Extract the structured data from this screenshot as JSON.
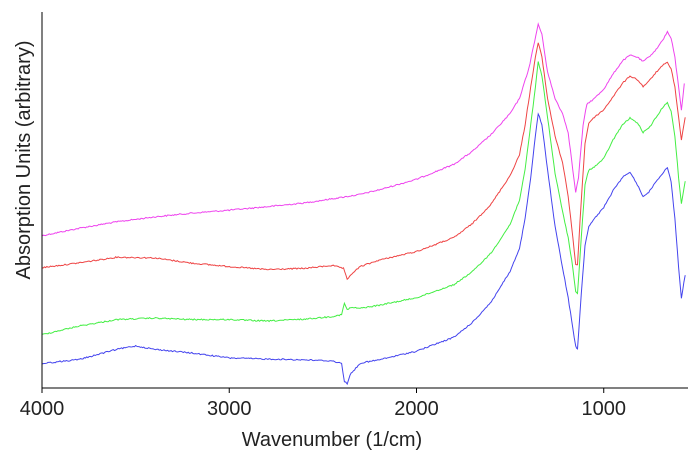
{
  "chart_data": {
    "type": "line",
    "xlabel": "Wavenumber (1/cm)",
    "ylabel": "Absorption Units (arbitrary)",
    "xlim": [
      4000,
      550
    ],
    "x_reversed": true,
    "ylim": [
      0,
      100
    ],
    "y_tick_labels": false,
    "x_ticks": [
      4000,
      3000,
      2000,
      1000
    ],
    "x_tick_labels": [
      "4000",
      "3000",
      "2000",
      "1000"
    ],
    "grid": false,
    "legend": "none",
    "series": [
      {
        "color": "#ee44ee",
        "points": [
          [
            4000,
            40.5
          ],
          [
            3800,
            42.5
          ],
          [
            3600,
            44.2
          ],
          [
            3400,
            45.5
          ],
          [
            3200,
            46.5
          ],
          [
            3000,
            47.3
          ],
          [
            2800,
            48.2
          ],
          [
            2600,
            49.2
          ],
          [
            2400,
            50.7
          ],
          [
            2300,
            51.5
          ],
          [
            2200,
            52.7
          ],
          [
            2000,
            55.5
          ],
          [
            1800,
            59.5
          ],
          [
            1700,
            63
          ],
          [
            1600,
            67.5
          ],
          [
            1500,
            73
          ],
          [
            1450,
            77
          ],
          [
            1400,
            85
          ],
          [
            1370,
            92
          ],
          [
            1350,
            96.8
          ],
          [
            1330,
            94
          ],
          [
            1300,
            84
          ],
          [
            1260,
            77
          ],
          [
            1220,
            73
          ],
          [
            1190,
            68
          ],
          [
            1165,
            58
          ],
          [
            1150,
            52
          ],
          [
            1135,
            56
          ],
          [
            1110,
            70
          ],
          [
            1090,
            75.5
          ],
          [
            1050,
            77
          ],
          [
            1000,
            79.5
          ],
          [
            950,
            83.5
          ],
          [
            900,
            87
          ],
          [
            860,
            88.5
          ],
          [
            820,
            88
          ],
          [
            790,
            86.8
          ],
          [
            760,
            88
          ],
          [
            720,
            90
          ],
          [
            680,
            93
          ],
          [
            660,
            94.7
          ],
          [
            640,
            93
          ],
          [
            620,
            88
          ],
          [
            600,
            80
          ],
          [
            585,
            74
          ],
          [
            570,
            81
          ]
        ]
      },
      {
        "color": "#ee4444",
        "points": [
          [
            4000,
            32
          ],
          [
            3800,
            33.3
          ],
          [
            3600,
            34.8
          ],
          [
            3400,
            34.6
          ],
          [
            3200,
            33.2
          ],
          [
            3000,
            32.3
          ],
          [
            2800,
            31.5
          ],
          [
            2600,
            31.8
          ],
          [
            2450,
            32.6
          ],
          [
            2390,
            31.8
          ],
          [
            2370,
            28.8
          ],
          [
            2350,
            30.2
          ],
          [
            2300,
            32.3
          ],
          [
            2200,
            34
          ],
          [
            2000,
            36.3
          ],
          [
            1800,
            40
          ],
          [
            1700,
            43.8
          ],
          [
            1600,
            49
          ],
          [
            1500,
            56.5
          ],
          [
            1450,
            62
          ],
          [
            1420,
            70
          ],
          [
            1390,
            80
          ],
          [
            1365,
            88
          ],
          [
            1350,
            91.8
          ],
          [
            1330,
            88
          ],
          [
            1300,
            77
          ],
          [
            1260,
            67
          ],
          [
            1220,
            60
          ],
          [
            1190,
            51
          ],
          [
            1165,
            40
          ],
          [
            1150,
            33
          ],
          [
            1140,
            32.8
          ],
          [
            1120,
            50
          ],
          [
            1100,
            65
          ],
          [
            1080,
            70.5
          ],
          [
            1050,
            72
          ],
          [
            1000,
            74
          ],
          [
            950,
            77.5
          ],
          [
            900,
            81
          ],
          [
            860,
            83
          ],
          [
            820,
            82
          ],
          [
            790,
            80.2
          ],
          [
            760,
            81.5
          ],
          [
            720,
            84
          ],
          [
            680,
            86
          ],
          [
            660,
            86.5
          ],
          [
            640,
            85
          ],
          [
            620,
            80
          ],
          [
            600,
            72
          ],
          [
            585,
            66
          ],
          [
            565,
            72
          ]
        ]
      },
      {
        "color": "#44ee44",
        "points": [
          [
            4000,
            14.2
          ],
          [
            3800,
            16.5
          ],
          [
            3600,
            18.2
          ],
          [
            3400,
            18.6
          ],
          [
            3200,
            18.2
          ],
          [
            3000,
            18.2
          ],
          [
            2800,
            17.8
          ],
          [
            2600,
            18.3
          ],
          [
            2450,
            19
          ],
          [
            2400,
            19.5
          ],
          [
            2385,
            22.5
          ],
          [
            2370,
            20.8
          ],
          [
            2350,
            21.4
          ],
          [
            2300,
            21.2
          ],
          [
            2200,
            22
          ],
          [
            2000,
            24
          ],
          [
            1800,
            27.5
          ],
          [
            1700,
            31
          ],
          [
            1600,
            36
          ],
          [
            1500,
            43.5
          ],
          [
            1450,
            50
          ],
          [
            1420,
            58
          ],
          [
            1390,
            70
          ],
          [
            1365,
            80
          ],
          [
            1350,
            86.8
          ],
          [
            1330,
            83
          ],
          [
            1300,
            72
          ],
          [
            1260,
            57
          ],
          [
            1220,
            47
          ],
          [
            1190,
            40
          ],
          [
            1165,
            32
          ],
          [
            1150,
            25.5
          ],
          [
            1140,
            25
          ],
          [
            1120,
            40
          ],
          [
            1100,
            54
          ],
          [
            1080,
            58
          ],
          [
            1050,
            58.8
          ],
          [
            1000,
            61
          ],
          [
            950,
            66
          ],
          [
            900,
            70
          ],
          [
            860,
            71.8
          ],
          [
            820,
            70.5
          ],
          [
            790,
            68
          ],
          [
            760,
            69
          ],
          [
            720,
            72
          ],
          [
            680,
            75
          ],
          [
            660,
            76
          ],
          [
            640,
            73.5
          ],
          [
            620,
            67
          ],
          [
            600,
            56
          ],
          [
            585,
            49
          ],
          [
            565,
            55
          ]
        ]
      },
      {
        "color": "#4444ee",
        "points": [
          [
            4000,
            6.5
          ],
          [
            3800,
            7.6
          ],
          [
            3600,
            10.3
          ],
          [
            3500,
            11.2
          ],
          [
            3400,
            10.3
          ],
          [
            3200,
            9.3
          ],
          [
            3000,
            8
          ],
          [
            2800,
            7.7
          ],
          [
            2600,
            7.5
          ],
          [
            2450,
            7.2
          ],
          [
            2400,
            6.5
          ],
          [
            2385,
            1.8
          ],
          [
            2370,
            1.2
          ],
          [
            2355,
            3.5
          ],
          [
            2300,
            6.6
          ],
          [
            2200,
            7.5
          ],
          [
            2000,
            9.8
          ],
          [
            1800,
            13.5
          ],
          [
            1700,
            17.5
          ],
          [
            1600,
            23
          ],
          [
            1500,
            31
          ],
          [
            1450,
            37
          ],
          [
            1420,
            45
          ],
          [
            1390,
            56
          ],
          [
            1365,
            67
          ],
          [
            1350,
            73
          ],
          [
            1330,
            70
          ],
          [
            1300,
            58
          ],
          [
            1260,
            43
          ],
          [
            1220,
            32
          ],
          [
            1190,
            24
          ],
          [
            1165,
            16
          ],
          [
            1150,
            11
          ],
          [
            1140,
            10.5
          ],
          [
            1120,
            25
          ],
          [
            1100,
            38
          ],
          [
            1080,
            43
          ],
          [
            1050,
            45
          ],
          [
            1000,
            48
          ],
          [
            950,
            52.5
          ],
          [
            900,
            56
          ],
          [
            860,
            57.5
          ],
          [
            820,
            54
          ],
          [
            790,
            51
          ],
          [
            760,
            52
          ],
          [
            720,
            55
          ],
          [
            680,
            57.5
          ],
          [
            660,
            58.5
          ],
          [
            640,
            55
          ],
          [
            620,
            45
          ],
          [
            600,
            32
          ],
          [
            585,
            24
          ],
          [
            565,
            30
          ]
        ]
      }
    ]
  }
}
